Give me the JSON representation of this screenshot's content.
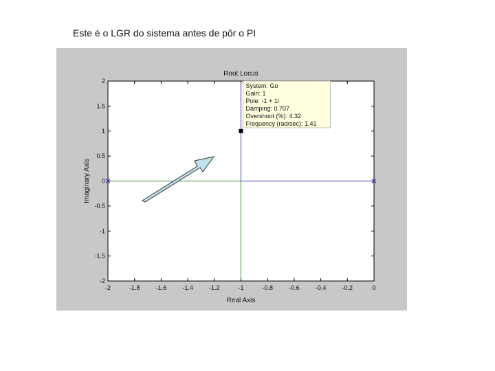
{
  "slide": {
    "caption": "Este é o LGR do sistema antes de pôr o PI"
  },
  "chart_data": {
    "type": "scatter",
    "title": "Root Locus",
    "xlabel": "Real Axis",
    "ylabel": "Imaginary Axis",
    "xlim": [
      -2,
      0
    ],
    "ylim": [
      -2,
      2
    ],
    "xticks": [
      -2,
      -1.8,
      -1.6,
      -1.4,
      -1.2,
      -1,
      -0.8,
      -0.6,
      -0.4,
      -0.2,
      0
    ],
    "xtick_labels": [
      "-2",
      "-1.8",
      "-1.6",
      "-1.4",
      "-1.2",
      "-1",
      "-0.8",
      "-0.6",
      "-0.4",
      "-0.2",
      "0"
    ],
    "yticks": [
      2,
      1.5,
      1,
      0.5,
      0,
      -0.5,
      -1,
      -1.5,
      -2
    ],
    "ytick_labels": [
      "2",
      "1.5",
      "1",
      "0.5",
      "0",
      "-0.5",
      "-1",
      "-1.5",
      "-2"
    ],
    "grid": false,
    "poles": [
      {
        "x": -2,
        "y": 0
      },
      {
        "x": 0,
        "y": 0
      }
    ],
    "locus": [
      {
        "color": "#2e8b2e",
        "points": [
          [
            -2,
            0
          ],
          [
            -1,
            0
          ],
          [
            -1,
            -2
          ]
        ]
      },
      {
        "color": "#3a3ab4",
        "points": [
          [
            0,
            0
          ],
          [
            -1,
            0
          ],
          [
            -1,
            2
          ]
        ]
      }
    ],
    "selected_point": {
      "x": -1,
      "y": 1
    },
    "datatip": [
      "System: Go",
      "Gain: 1",
      "Pole: -1 + 1i",
      "Damping: 0.707",
      "Overshoot (%): 4.32",
      "Frequency (rad/sec): 1.41"
    ],
    "colors": {
      "figure_bg": "#c8c8c8",
      "axes_bg": "#ffffff",
      "datatip_bg": "#ffffe0",
      "arrow_fill": "#bfe3ee",
      "pole_marker": "#3a3ab4"
    }
  }
}
